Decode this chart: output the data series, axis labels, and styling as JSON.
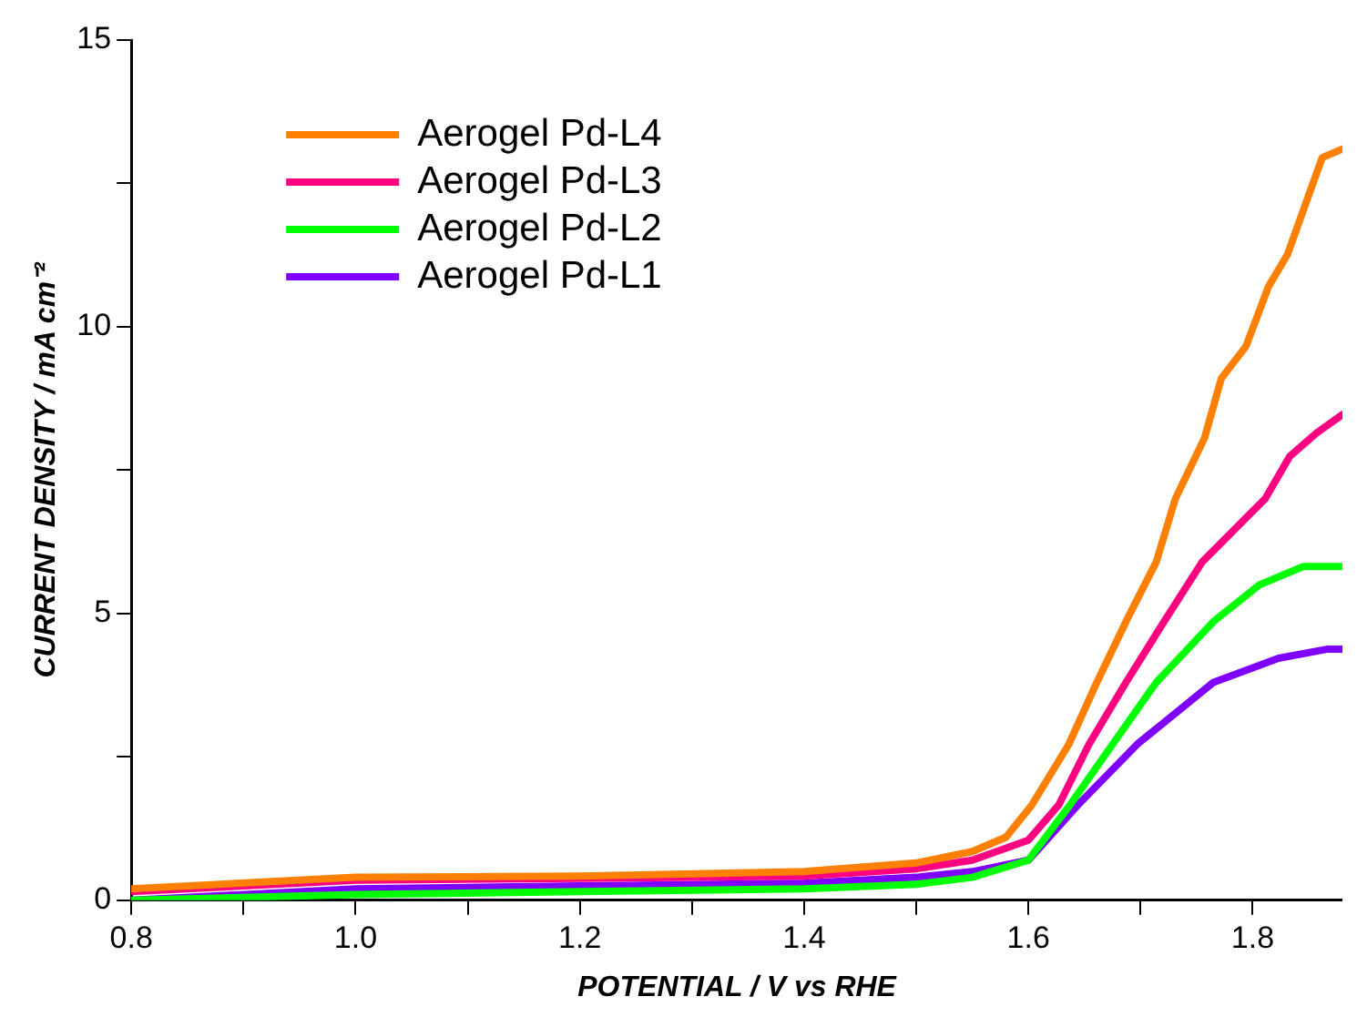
{
  "chart_data": {
    "type": "line",
    "xlabel": "POTENTIAL / V vs RHE",
    "ylabel": "CURRENT DENSITY / mA cm⁻²",
    "xlim": [
      0.8,
      1.88
    ],
    "ylim": [
      0,
      15
    ],
    "xticks": [
      0.8,
      {
        "value": 0.9,
        "label": null
      },
      {
        "value": 1,
        "label": "1.0"
      },
      {
        "value": 1.1,
        "label": null
      },
      1.2,
      {
        "value": 1.3,
        "label": null
      },
      1.4,
      {
        "value": 1.5,
        "label": null
      },
      1.6,
      {
        "value": 1.7,
        "label": null
      },
      1.8
    ],
    "yticks": [
      0,
      {
        "value": 2.5,
        "label": null
      },
      5,
      {
        "value": 7.5,
        "label": null
      },
      10,
      {
        "value": 12.5,
        "label": null
      },
      15
    ],
    "grid": false,
    "legend": "top left",
    "marker": "none",
    "line_style": "solid",
    "series": [
      {
        "name": "Aerogel Pd-L4",
        "color": "#ff7f00",
        "x": [
          0.8,
          1.0,
          1.2,
          1.4,
          1.5,
          1.55,
          1.58,
          1.603,
          1.636,
          1.661,
          1.687,
          1.714,
          1.731,
          1.757,
          1.772,
          1.794,
          1.814,
          1.831,
          1.85,
          1.862,
          1.88
        ],
        "values": [
          0.2,
          0.4,
          0.42,
          0.5,
          0.65,
          0.85,
          1.1,
          1.66,
          2.72,
          3.8,
          4.86,
          5.9,
          7.0,
          8.06,
          9.1,
          9.66,
          10.7,
          11.26,
          12.3,
          12.95,
          13.1
        ]
      },
      {
        "name": "Aerogel Pd-L3",
        "color": "#ff0080",
        "x": [
          0.8,
          1.0,
          1.2,
          1.4,
          1.5,
          1.55,
          1.6,
          1.627,
          1.654,
          1.687,
          1.721,
          1.755,
          1.811,
          1.833,
          1.857,
          1.88
        ],
        "values": [
          0.15,
          0.35,
          0.38,
          0.42,
          0.55,
          0.7,
          1.05,
          1.66,
          2.72,
          3.8,
          4.86,
          5.9,
          7.0,
          7.74,
          8.15,
          8.47
        ]
      },
      {
        "name": "Aerogel Pd-L2",
        "color": "#00ff00",
        "x": [
          0.8,
          1.0,
          1.2,
          1.4,
          1.5,
          1.55,
          1.6,
          1.637,
          1.675,
          1.714,
          1.765,
          1.806,
          1.845,
          1.88
        ],
        "values": [
          0.0,
          0.1,
          0.15,
          0.2,
          0.28,
          0.4,
          0.7,
          1.66,
          2.72,
          3.8,
          4.86,
          5.5,
          5.82,
          5.82
        ]
      },
      {
        "name": "Aerogel Pd-L1",
        "color": "#8000ff",
        "x": [
          0.8,
          1.0,
          1.2,
          1.4,
          1.5,
          1.55,
          1.6,
          1.644,
          1.697,
          1.765,
          1.823,
          1.867,
          1.88
        ],
        "values": [
          0.0,
          0.2,
          0.25,
          0.3,
          0.4,
          0.5,
          0.7,
          1.66,
          2.72,
          3.8,
          4.22,
          4.38,
          4.38
        ]
      }
    ]
  }
}
